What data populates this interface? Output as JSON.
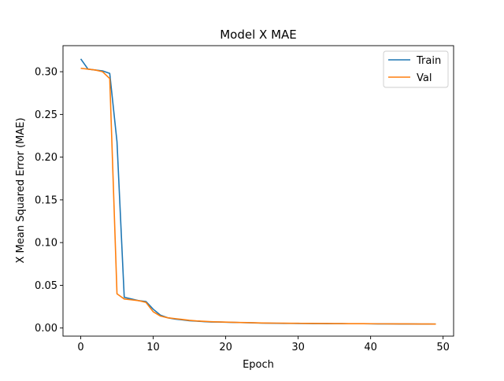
{
  "chart_data": {
    "type": "line",
    "title": "Model X MAE",
    "xlabel": "Epoch",
    "ylabel": "X Mean Squared Error (MAE)",
    "xlim": [
      -2.45,
      51.45
    ],
    "ylim": [
      -0.0095,
      0.3305
    ],
    "xticks": [
      0,
      10,
      20,
      30,
      40,
      50
    ],
    "xtick_labels": [
      "0",
      "10",
      "20",
      "30",
      "40",
      "50"
    ],
    "yticks": [
      0.0,
      0.05,
      0.1,
      0.15,
      0.2,
      0.25,
      0.3
    ],
    "ytick_labels": [
      "0.00",
      "0.05",
      "0.10",
      "0.15",
      "0.20",
      "0.25",
      "0.30"
    ],
    "grid": false,
    "legend": "top-right",
    "x": [
      0,
      1,
      2,
      3,
      4,
      5,
      6,
      7,
      8,
      9,
      10,
      11,
      12,
      13,
      14,
      15,
      16,
      17,
      18,
      19,
      20,
      21,
      22,
      23,
      24,
      25,
      26,
      27,
      28,
      29,
      30,
      31,
      32,
      33,
      34,
      35,
      36,
      37,
      38,
      39,
      40,
      41,
      42,
      43,
      44,
      45,
      46,
      47,
      48,
      49
    ],
    "series": [
      {
        "name": "Train",
        "color": "#1f77b4",
        "values": [
          0.315,
          0.303,
          0.302,
          0.301,
          0.298,
          0.218,
          0.036,
          0.034,
          0.032,
          0.031,
          0.022,
          0.015,
          0.012,
          0.0105,
          0.0095,
          0.0085,
          0.008,
          0.0075,
          0.007,
          0.007,
          0.0068,
          0.0066,
          0.0064,
          0.0062,
          0.006,
          0.0058,
          0.0056,
          0.0055,
          0.0054,
          0.0054,
          0.0053,
          0.0053,
          0.0052,
          0.0052,
          0.0051,
          0.0051,
          0.0051,
          0.005,
          0.005,
          0.005,
          0.0049,
          0.0048,
          0.0048,
          0.0048,
          0.0047,
          0.0047,
          0.0047,
          0.0046,
          0.0046,
          0.0046
        ]
      },
      {
        "name": "Val",
        "color": "#ff7f0e",
        "values": [
          0.304,
          0.303,
          0.302,
          0.3,
          0.292,
          0.04,
          0.034,
          0.033,
          0.032,
          0.03,
          0.019,
          0.014,
          0.012,
          0.011,
          0.01,
          0.009,
          0.0083,
          0.0078,
          0.0074,
          0.0071,
          0.0069,
          0.0067,
          0.0065,
          0.0063,
          0.0061,
          0.0059,
          0.0058,
          0.0057,
          0.0056,
          0.0055,
          0.0055,
          0.0054,
          0.0054,
          0.0053,
          0.0053,
          0.0052,
          0.0052,
          0.0051,
          0.0051,
          0.0051,
          0.005,
          0.0049,
          0.0049,
          0.0048,
          0.0048,
          0.0048,
          0.0047,
          0.0047,
          0.0047,
          0.0046
        ]
      }
    ]
  }
}
